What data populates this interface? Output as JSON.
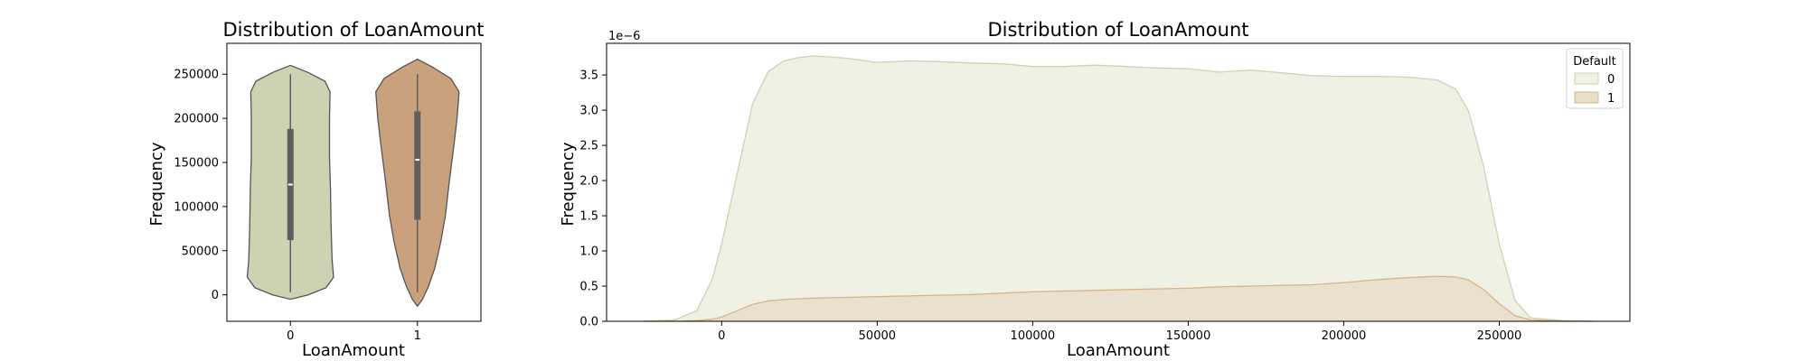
{
  "chart_data": [
    {
      "type": "violin",
      "title": "Distribution of LoanAmount",
      "xlabel": "LoanAmount",
      "ylabel": "Frequency",
      "categories": [
        "0",
        "1"
      ],
      "ylim": [
        -30000,
        285000
      ],
      "yticks": [
        0,
        50000,
        100000,
        150000,
        200000,
        250000
      ],
      "colors": [
        "#cbd3b3",
        "#c9a17c"
      ],
      "series": [
        {
          "category": "0",
          "whisker": [
            3000,
            250000
          ],
          "q1": 62000,
          "median": 125000,
          "q3": 188000,
          "density_profile": [
            {
              "y": -5000,
              "w": 0.0
            },
            {
              "y": 0,
              "w": 0.35
            },
            {
              "y": 8000,
              "w": 0.7
            },
            {
              "y": 20000,
              "w": 0.85
            },
            {
              "y": 40000,
              "w": 0.82
            },
            {
              "y": 80000,
              "w": 0.8
            },
            {
              "y": 120000,
              "w": 0.79
            },
            {
              "y": 155000,
              "w": 0.77
            },
            {
              "y": 200000,
              "w": 0.77
            },
            {
              "y": 230000,
              "w": 0.78
            },
            {
              "y": 242000,
              "w": 0.68
            },
            {
              "y": 252000,
              "w": 0.35
            },
            {
              "y": 260000,
              "w": 0.0
            }
          ]
        },
        {
          "category": "1",
          "whisker": [
            3000,
            250000
          ],
          "q1": 85000,
          "median": 153000,
          "q3": 208000,
          "density_profile": [
            {
              "y": -13000,
              "w": 0.0
            },
            {
              "y": -5000,
              "w": 0.1
            },
            {
              "y": 10000,
              "w": 0.22
            },
            {
              "y": 30000,
              "w": 0.34
            },
            {
              "y": 60000,
              "w": 0.46
            },
            {
              "y": 90000,
              "w": 0.55
            },
            {
              "y": 130000,
              "w": 0.63
            },
            {
              "y": 170000,
              "w": 0.72
            },
            {
              "y": 200000,
              "w": 0.78
            },
            {
              "y": 230000,
              "w": 0.82
            },
            {
              "y": 245000,
              "w": 0.66
            },
            {
              "y": 258000,
              "w": 0.3
            },
            {
              "y": 267000,
              "w": 0.0
            }
          ]
        }
      ]
    },
    {
      "type": "area",
      "title": "Distribution of LoanAmount",
      "xlabel": "LoanAmount",
      "ylabel": "Frequency",
      "y_scale_label": "1e−6",
      "xlim": [
        -37000,
        292000
      ],
      "ylim": [
        0,
        3.95
      ],
      "xticks": [
        0,
        50000,
        100000,
        150000,
        200000,
        250000
      ],
      "yticks": [
        0.0,
        0.5,
        1.0,
        1.5,
        2.0,
        2.5,
        3.0,
        3.5
      ],
      "ytick_labels": [
        "0.0",
        "0.5",
        "1.0",
        "1.5",
        "2.0",
        "2.5",
        "3.0",
        "3.5"
      ],
      "legend": {
        "title": "Default",
        "position": "top-right"
      },
      "series": [
        {
          "name": "0",
          "fill": "#f0f1e5",
          "stroke": "#cbd3b3",
          "x": [
            -25000,
            -15000,
            -8000,
            -3000,
            0,
            5000,
            10000,
            15000,
            20000,
            25000,
            30000,
            40000,
            50000,
            60000,
            70000,
            80000,
            90000,
            100000,
            110000,
            120000,
            130000,
            140000,
            150000,
            160000,
            170000,
            180000,
            190000,
            200000,
            210000,
            220000,
            230000,
            236000,
            240000,
            245000,
            250000,
            255000,
            260000,
            270000,
            280000
          ],
          "values": [
            0.0,
            0.02,
            0.15,
            0.6,
            1.1,
            2.1,
            3.1,
            3.55,
            3.7,
            3.75,
            3.77,
            3.74,
            3.68,
            3.7,
            3.69,
            3.67,
            3.66,
            3.62,
            3.62,
            3.64,
            3.62,
            3.6,
            3.59,
            3.54,
            3.57,
            3.53,
            3.49,
            3.48,
            3.48,
            3.47,
            3.43,
            3.3,
            3.0,
            2.2,
            1.1,
            0.3,
            0.05,
            0.01,
            0.0
          ]
        },
        {
          "name": "1",
          "fill": "#e8dfca",
          "stroke": "#d9b487",
          "x": [
            -25000,
            -15000,
            -8000,
            -3000,
            0,
            5000,
            10000,
            15000,
            20000,
            25000,
            30000,
            40000,
            50000,
            60000,
            70000,
            80000,
            90000,
            100000,
            110000,
            120000,
            130000,
            140000,
            150000,
            160000,
            170000,
            180000,
            190000,
            200000,
            210000,
            220000,
            230000,
            236000,
            240000,
            245000,
            250000,
            255000,
            260000,
            270000,
            280000
          ],
          "values": [
            0.0,
            0.0,
            0.01,
            0.03,
            0.06,
            0.15,
            0.24,
            0.29,
            0.31,
            0.32,
            0.33,
            0.34,
            0.35,
            0.36,
            0.37,
            0.38,
            0.4,
            0.42,
            0.43,
            0.44,
            0.45,
            0.46,
            0.47,
            0.49,
            0.5,
            0.51,
            0.52,
            0.55,
            0.59,
            0.62,
            0.64,
            0.63,
            0.59,
            0.45,
            0.25,
            0.08,
            0.02,
            0.005,
            0.0
          ]
        }
      ]
    }
  ]
}
